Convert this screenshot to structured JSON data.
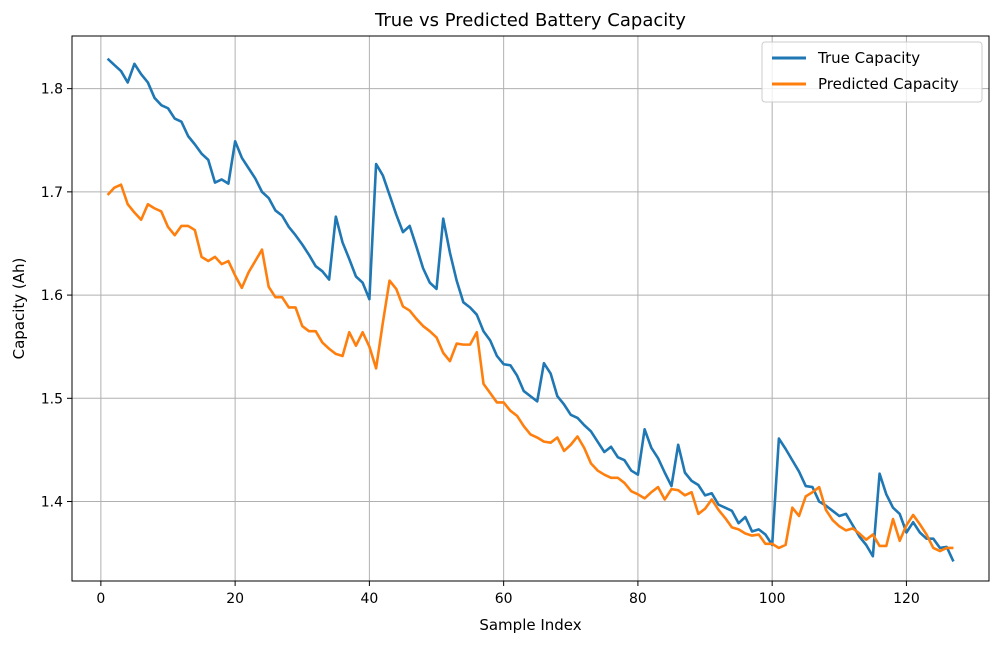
{
  "chart_data": {
    "type": "line",
    "title": "True vs Predicted Battery Capacity",
    "xlabel": "Sample Index",
    "ylabel": "Capacity (Ah)",
    "xlim": [
      -4.3,
      132.3
    ],
    "ylim": [
      1.323,
      1.851
    ],
    "xticks": [
      0,
      20,
      40,
      60,
      80,
      100,
      120
    ],
    "yticks": [
      1.4,
      1.5,
      1.6,
      1.7,
      1.8
    ],
    "xtick_labels": [
      "0",
      "20",
      "40",
      "60",
      "80",
      "100",
      "120"
    ],
    "ytick_labels": [
      "1.4",
      "1.5",
      "1.6",
      "1.7",
      "1.8"
    ],
    "grid": true,
    "legend_position": "top-right",
    "series": [
      {
        "name": "True Capacity",
        "color": "#1f77b4",
        "values": [
          1.829,
          1.823,
          1.817,
          1.806,
          1.824,
          1.814,
          1.806,
          1.791,
          1.784,
          1.781,
          1.771,
          1.768,
          1.754,
          1.746,
          1.737,
          1.731,
          1.709,
          1.712,
          1.708,
          1.749,
          1.733,
          1.723,
          1.713,
          1.7,
          1.694,
          1.682,
          1.677,
          1.666,
          1.658,
          1.649,
          1.639,
          1.628,
          1.623,
          1.615,
          1.676,
          1.651,
          1.635,
          1.618,
          1.612,
          1.596,
          1.727,
          1.716,
          1.697,
          1.678,
          1.661,
          1.667,
          1.647,
          1.626,
          1.612,
          1.606,
          1.674,
          1.641,
          1.614,
          1.593,
          1.588,
          1.581,
          1.565,
          1.556,
          1.541,
          1.533,
          1.532,
          1.522,
          1.507,
          1.502,
          1.497,
          1.534,
          1.524,
          1.502,
          1.494,
          1.484,
          1.481,
          1.474,
          1.468,
          1.458,
          1.448,
          1.453,
          1.443,
          1.44,
          1.43,
          1.426,
          1.47,
          1.452,
          1.442,
          1.428,
          1.415,
          1.455,
          1.428,
          1.42,
          1.416,
          1.406,
          1.408,
          1.397,
          1.394,
          1.391,
          1.379,
          1.385,
          1.371,
          1.373,
          1.368,
          1.358,
          1.461,
          1.451,
          1.44,
          1.429,
          1.415,
          1.414,
          1.4,
          1.396,
          1.391,
          1.386,
          1.388,
          1.377,
          1.366,
          1.358,
          1.347,
          1.427,
          1.407,
          1.394,
          1.388,
          1.37,
          1.38,
          1.37,
          1.364,
          1.364,
          1.355,
          1.356,
          1.342
        ]
      },
      {
        "name": "Predicted Capacity",
        "color": "#ff7f0e",
        "values": [
          1.697,
          1.704,
          1.707,
          1.688,
          1.68,
          1.673,
          1.688,
          1.684,
          1.681,
          1.666,
          1.658,
          1.667,
          1.667,
          1.663,
          1.637,
          1.633,
          1.637,
          1.63,
          1.633,
          1.619,
          1.607,
          1.622,
          1.633,
          1.644,
          1.608,
          1.598,
          1.598,
          1.588,
          1.588,
          1.57,
          1.565,
          1.565,
          1.554,
          1.548,
          1.543,
          1.541,
          1.564,
          1.551,
          1.564,
          1.55,
          1.529,
          1.573,
          1.614,
          1.606,
          1.589,
          1.585,
          1.577,
          1.57,
          1.565,
          1.559,
          1.544,
          1.536,
          1.553,
          1.552,
          1.552,
          1.564,
          1.514,
          1.505,
          1.496,
          1.496,
          1.488,
          1.483,
          1.473,
          1.465,
          1.462,
          1.458,
          1.457,
          1.462,
          1.449,
          1.455,
          1.463,
          1.452,
          1.437,
          1.43,
          1.426,
          1.423,
          1.423,
          1.418,
          1.41,
          1.407,
          1.403,
          1.409,
          1.414,
          1.402,
          1.412,
          1.411,
          1.406,
          1.409,
          1.388,
          1.393,
          1.402,
          1.392,
          1.384,
          1.375,
          1.373,
          1.369,
          1.367,
          1.368,
          1.359,
          1.359,
          1.355,
          1.358,
          1.394,
          1.386,
          1.405,
          1.409,
          1.414,
          1.392,
          1.382,
          1.376,
          1.372,
          1.374,
          1.369,
          1.363,
          1.368,
          1.357,
          1.357,
          1.383,
          1.362,
          1.377,
          1.387,
          1.378,
          1.368,
          1.355,
          1.352,
          1.355,
          1.355
        ]
      }
    ]
  }
}
